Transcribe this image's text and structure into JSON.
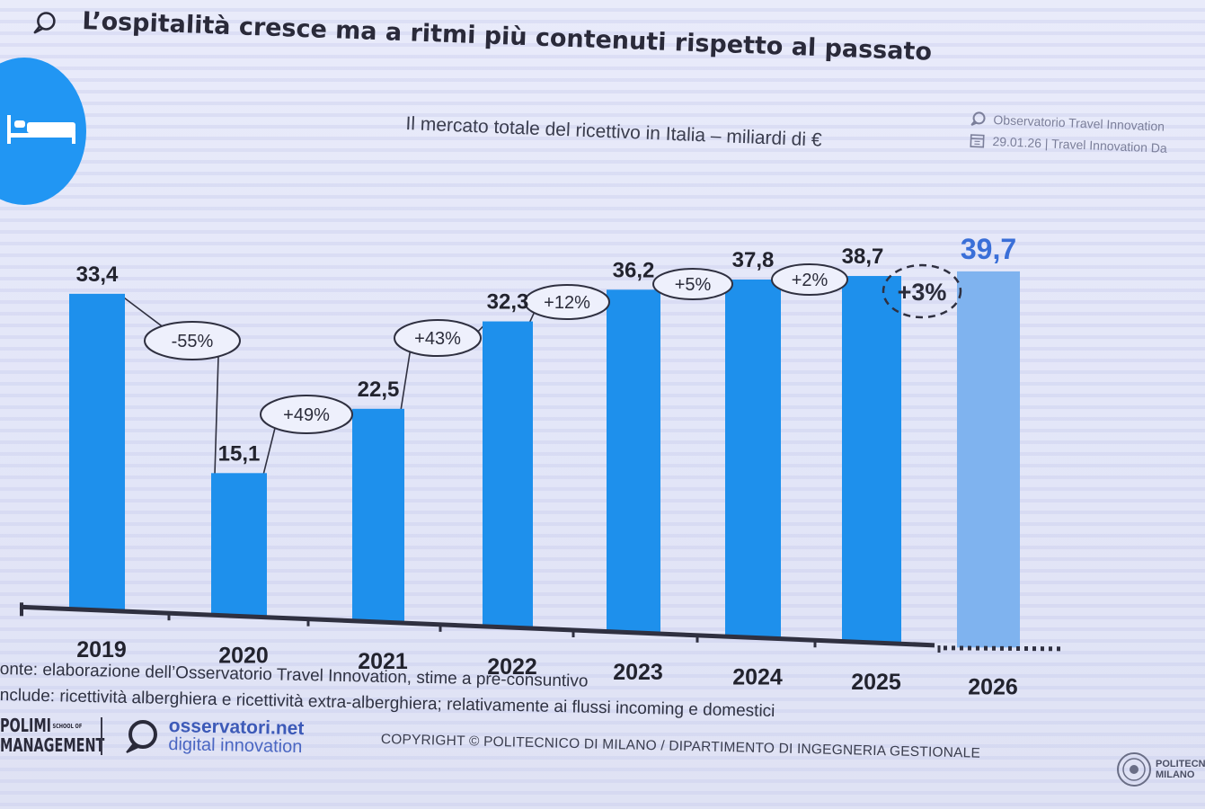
{
  "slide": {
    "title": "L’ospitalità cresce ma a ritmi più contenuti rispetto al passato",
    "subtitle": "Il mercato totale del ricettivo in Italia – miliardi di €",
    "observatory": "Observatorio Travel Innovation",
    "date_event": "29.01.26 | Travel Innovation Da",
    "source": "onte: elaborazione dell’Osservatorio Travel Innovation, stime a pre-consuntivo",
    "includes": "nclude: ricettività alberghiera e ricettività extra-alberghiera; relativamente ai flussi incoming e domestici",
    "footer": {
      "polimi_line1": "POLIMI",
      "polimi_small": "SCHOOL OF",
      "polimi_line2": "MANAGEMENT",
      "osservatori_line1": "osservatori.net",
      "osservatori_line2": "digital innovation",
      "copyright": "COPYRIGHT © POLITECNICO DI MILANO / DIPARTIMENTO DI INGEGNERIA GESTIONALE",
      "polito_line1": "POLITECN",
      "polito_line2": "MILANO"
    },
    "icons": [
      "chat-bubble-icon",
      "calendar-icon",
      "bed-icon",
      "osservatori-logo-icon",
      "politecnico-seal-icon"
    ]
  },
  "colors": {
    "bar": "#1e90ec",
    "bar_forecast": "#7fb3ef",
    "accent_circle": "#2196f3",
    "text": "#2a2a3a"
  },
  "chart_data": {
    "type": "bar",
    "categories": [
      "2019",
      "2020",
      "2021",
      "2022",
      "2023",
      "2024",
      "2025",
      "2026"
    ],
    "values": [
      33.4,
      15.1,
      22.5,
      32.3,
      36.2,
      37.8,
      38.7,
      39.7
    ],
    "value_labels": [
      "33,4",
      "15,1",
      "22,5",
      "32,3",
      "36,2",
      "37,8",
      "38,7",
      "39,7"
    ],
    "growth_labels": [
      "-55%",
      "+49%",
      "+43%",
      "+12%",
      "+5%",
      "+2%",
      "+3%"
    ],
    "forecast_category": "2026",
    "title": "Il mercato totale del ricettivo in Italia – miliardi di €",
    "ylim": [
      0,
      40
    ],
    "grid": false,
    "legend": "none"
  }
}
